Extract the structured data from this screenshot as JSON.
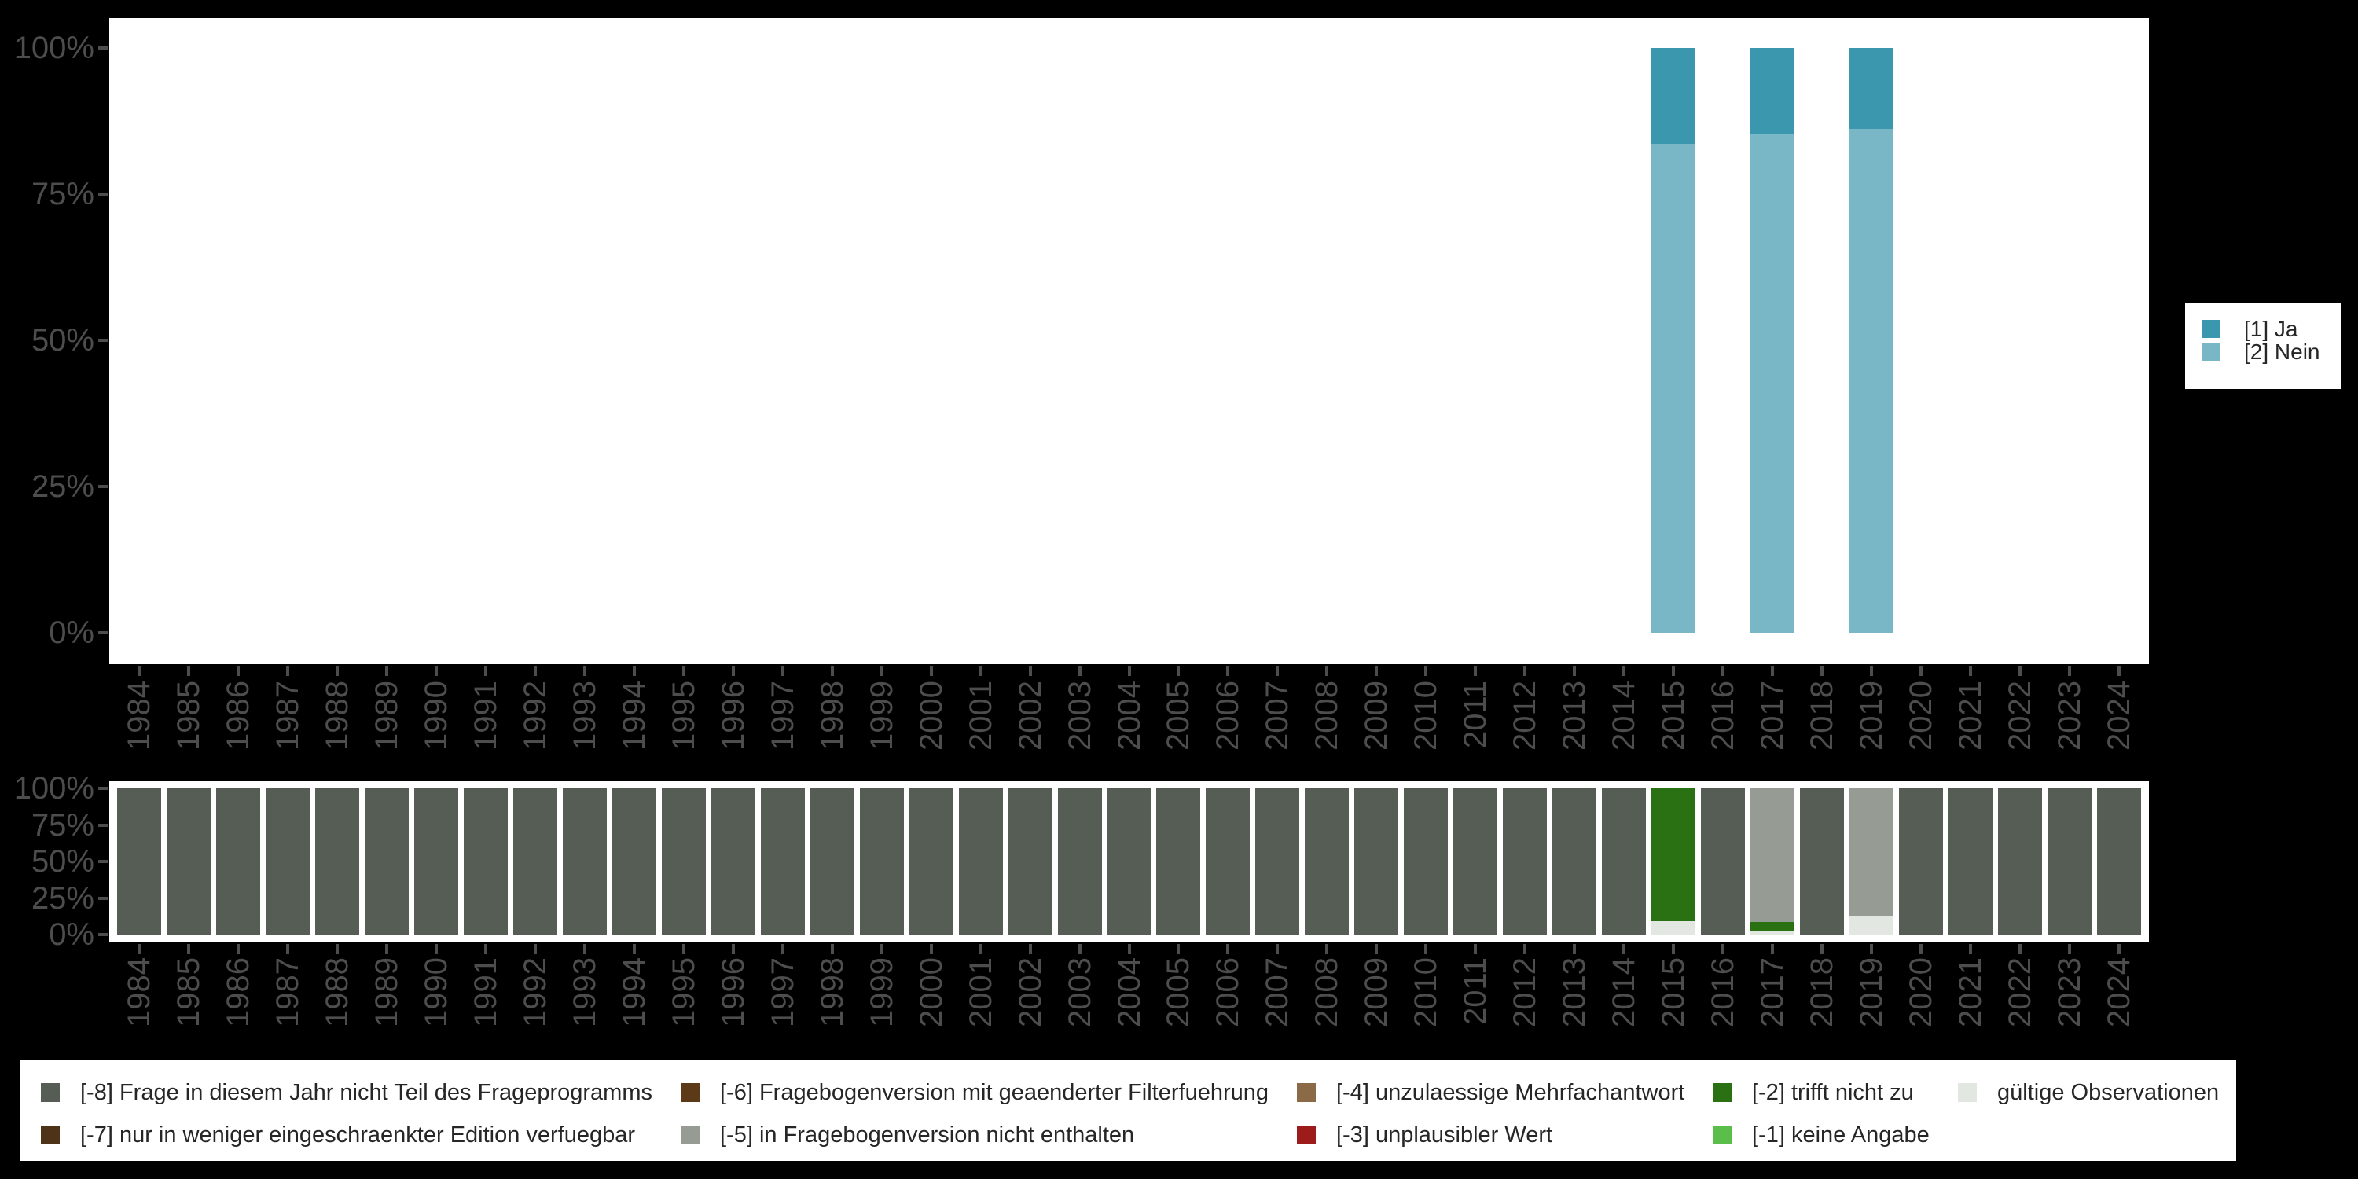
{
  "background_color": "#000000",
  "panel_color": "#ffffff",
  "axis_style": {
    "text_color": "#4D4D4D",
    "tick_color": "#4D4D4D"
  },
  "response_legend": {
    "items": [
      {
        "label": "[1] Ja",
        "color": "#3B97AE"
      },
      {
        "label": "[2] Nein",
        "color": "#79B6C6"
      }
    ]
  },
  "missing_legend": {
    "items": [
      {
        "label": "[-8] Frage in diesem Jahr nicht Teil des Frageprogramms",
        "color": "#565D55",
        "col": 0,
        "row": 0
      },
      {
        "label": "[-7] nur in weniger eingeschraenkter Edition verfuegbar",
        "color": "#4F3318",
        "col": 0,
        "row": 1
      },
      {
        "label": "[-6] Fragebogenversion mit geaenderter Filterfuehrung",
        "color": "#5C3A17",
        "col": 1,
        "row": 0
      },
      {
        "label": "[-5] in Fragebogenversion nicht enthalten",
        "color": "#969C94",
        "col": 1,
        "row": 1
      },
      {
        "label": "[-4] unzulaessige Mehrfachantwort",
        "color": "#8A6A47",
        "col": 2,
        "row": 0
      },
      {
        "label": "[-3] unplausibler Wert",
        "color": "#9E1B1B",
        "col": 2,
        "row": 1
      },
      {
        "label": "[-2] trifft nicht zu",
        "color": "#2A7113",
        "col": 3,
        "row": 0
      },
      {
        "label": "[-1] keine Angabe",
        "color": "#5BBE4A",
        "col": 3,
        "row": 1
      },
      {
        "label": "gültige Observationen",
        "color": "#E2E7E1",
        "col": 4,
        "row": 0
      }
    ]
  },
  "chart_data": [
    {
      "id": "responses",
      "type": "bar",
      "stacked": "percent",
      "title": "",
      "xlabel": "",
      "ylabel": "",
      "ylim": [
        0,
        100
      ],
      "grid": false,
      "legend_position": "right",
      "y_ticks": [
        {
          "label": "0%",
          "pct": 0
        },
        {
          "label": "25%",
          "pct": 25
        },
        {
          "label": "50%",
          "pct": 50
        },
        {
          "label": "75%",
          "pct": 75
        },
        {
          "label": "100%",
          "pct": 100
        }
      ],
      "categories": [
        "1984",
        "1985",
        "1986",
        "1987",
        "1988",
        "1989",
        "1990",
        "1991",
        "1992",
        "1993",
        "1994",
        "1995",
        "1996",
        "1997",
        "1998",
        "1999",
        "2000",
        "2001",
        "2002",
        "2003",
        "2004",
        "2005",
        "2006",
        "2007",
        "2008",
        "2009",
        "2010",
        "2011",
        "2012",
        "2013",
        "2014",
        "2015",
        "2016",
        "2017",
        "2018",
        "2019",
        "2020",
        "2021",
        "2022",
        "2023",
        "2024"
      ],
      "series": [
        {
          "name": "[1] Ja",
          "color": "#3B97AE",
          "values": {
            "2015": 16.4,
            "2017": 14.6,
            "2019": 13.9
          }
        },
        {
          "name": "[2] Nein",
          "color": "#79B6C6",
          "values": {
            "2015": 83.6,
            "2017": 85.4,
            "2019": 86.1
          }
        }
      ],
      "stack_order_bottom_to_top": [
        "[2] Nein",
        "[1] Ja"
      ]
    },
    {
      "id": "missings",
      "type": "bar",
      "stacked": "percent",
      "title": "",
      "xlabel": "",
      "ylabel": "",
      "ylim": [
        0,
        100
      ],
      "grid": false,
      "legend_position": "bottom",
      "y_ticks": [
        {
          "label": "0%",
          "pct": 0
        },
        {
          "label": "25%",
          "pct": 25
        },
        {
          "label": "50%",
          "pct": 50
        },
        {
          "label": "75%",
          "pct": 75
        },
        {
          "label": "100%",
          "pct": 100
        }
      ],
      "categories": [
        "1984",
        "1985",
        "1986",
        "1987",
        "1988",
        "1989",
        "1990",
        "1991",
        "1992",
        "1993",
        "1994",
        "1995",
        "1996",
        "1997",
        "1998",
        "1999",
        "2000",
        "2001",
        "2002",
        "2003",
        "2004",
        "2005",
        "2006",
        "2007",
        "2008",
        "2009",
        "2010",
        "2011",
        "2012",
        "2013",
        "2014",
        "2015",
        "2016",
        "2017",
        "2018",
        "2019",
        "2020",
        "2021",
        "2022",
        "2023",
        "2024"
      ],
      "series": [
        {
          "name": "[-8] Frage in diesem Jahr nicht Teil des Frageprogramms",
          "color": "#565D55",
          "values": {
            "1984": 100,
            "1985": 100,
            "1986": 100,
            "1987": 100,
            "1988": 100,
            "1989": 100,
            "1990": 100,
            "1991": 100,
            "1992": 100,
            "1993": 100,
            "1994": 100,
            "1995": 100,
            "1996": 100,
            "1997": 100,
            "1998": 100,
            "1999": 100,
            "2000": 100,
            "2001": 100,
            "2002": 100,
            "2003": 100,
            "2004": 100,
            "2005": 100,
            "2006": 100,
            "2007": 100,
            "2008": 100,
            "2009": 100,
            "2010": 100,
            "2011": 100,
            "2012": 100,
            "2013": 100,
            "2014": 100,
            "2016": 100,
            "2018": 100,
            "2020": 100,
            "2021": 100,
            "2022": 100,
            "2023": 100,
            "2024": 100
          }
        },
        {
          "name": "[-7] nur in weniger eingeschraenkter Edition verfuegbar",
          "color": "#4F3318",
          "values": {}
        },
        {
          "name": "[-6] Fragebogenversion mit geaenderter Filterfuehrung",
          "color": "#5C3A17",
          "values": {}
        },
        {
          "name": "[-5] in Fragebogenversion nicht enthalten",
          "color": "#969C94",
          "values": {
            "2017": 91.5,
            "2019": 87.5
          }
        },
        {
          "name": "[-4] unzulaessige Mehrfachantwort",
          "color": "#8A6A47",
          "values": {}
        },
        {
          "name": "[-3] unplausibler Wert",
          "color": "#9E1B1B",
          "values": {}
        },
        {
          "name": "[-2] trifft nicht zu",
          "color": "#2A7113",
          "values": {
            "2015": 91,
            "2017": 6
          }
        },
        {
          "name": "[-1] keine Angabe",
          "color": "#5BBE4A",
          "values": {}
        },
        {
          "name": "gültige Observationen",
          "color": "#E2E7E1",
          "values": {
            "2015": 9,
            "2017": 2.5,
            "2019": 12.5
          }
        }
      ],
      "stack_order_bottom_to_top": [
        "gültige Observationen",
        "[-1] keine Angabe",
        "[-2] trifft nicht zu",
        "[-3] unplausibler Wert",
        "[-4] unzulaessige Mehrfachantwort",
        "[-5] in Fragebogenversion nicht enthalten",
        "[-6] Fragebogenversion mit geaenderter Filterfuehrung",
        "[-7] nur in weniger eingeschraenkter Edition verfuegbar",
        "[-8] Frage in diesem Jahr nicht Teil des Frageprogramms"
      ]
    }
  ]
}
